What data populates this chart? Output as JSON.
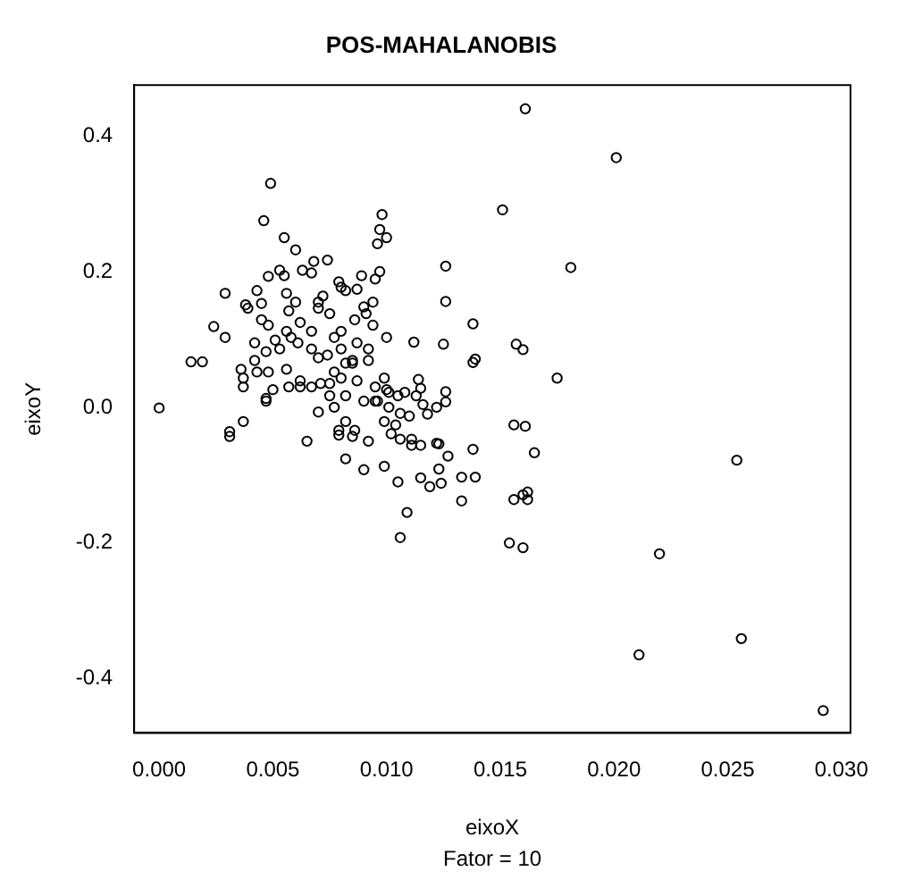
{
  "chart_data": {
    "type": "scatter",
    "title": "POS-MAHALANOBIS",
    "xlabel": "eixoX",
    "ylabel": "eixoY",
    "annotations": [
      "Fator = 10"
    ],
    "xlim": [
      -0.0011,
      0.0304
    ],
    "ylim": [
      -0.48,
      0.475
    ],
    "xticks": [
      {
        "value": 0,
        "label": "0.000"
      },
      {
        "value": 0.005,
        "label": "0.005"
      },
      {
        "value": 0.01,
        "label": "0.010"
      },
      {
        "value": 0.015,
        "label": "0.015"
      },
      {
        "value": 0.02,
        "label": "0.020"
      },
      {
        "value": 0.025,
        "label": "0.025"
      },
      {
        "value": 0.03,
        "label": "0.030"
      }
    ],
    "yticks": [
      {
        "value": -0.4,
        "label": "-0.4"
      },
      {
        "value": -0.2,
        "label": "-0.2"
      },
      {
        "value": 0,
        "label": "0.0"
      },
      {
        "value": 0.2,
        "label": "0.2"
      },
      {
        "value": 0.4,
        "label": "0.4"
      }
    ],
    "marker": "circle",
    "grid": false,
    "legend": false,
    "series": [
      {
        "color": "#000000",
        "x": [
          0.0161,
          0.0201,
          0.0151,
          0.0126,
          0.0181,
          0.0126,
          0.0138,
          0.0125,
          0.0157,
          0.016,
          0.0138,
          0.0139,
          0.0175,
          0.0126,
          0.0126,
          0.0156,
          0.0161,
          0.0123,
          0.0138,
          0.0127,
          0.0165,
          0.0254,
          0.0124,
          0.0133,
          0.0139,
          0.0133,
          0.0156,
          0.016,
          0.0162,
          0.0162,
          0.0154,
          0.016,
          0.022,
          0.0256,
          0.0211,
          0.0292,
          0.0098,
          0.0097,
          0.01,
          0.0096,
          0.0112,
          0.0114,
          0.0115,
          0.0122,
          0.0118,
          0.0111,
          0.0115,
          0.0122,
          0.0065,
          0.0079,
          0.0085,
          0.0092,
          0.0049,
          0.0046,
          0.0055,
          0.006,
          0.0029,
          0.0024,
          0.0029,
          0.0014,
          0.0019,
          0.0,
          0.0031,
          0.0031,
          0.0037,
          0.007,
          0.0036,
          0.0037,
          0.0037,
          0.0047,
          0.0047,
          0.0048,
          0.0038,
          0.0043,
          0.0045,
          0.0063,
          0.0068,
          0.0074,
          0.0067,
          0.0053,
          0.0055,
          0.0056,
          0.006,
          0.0057,
          0.0062,
          0.0056,
          0.0051,
          0.0047,
          0.0042,
          0.0039,
          0.0045,
          0.0048,
          0.0053,
          0.0058,
          0.0061,
          0.0056,
          0.0048,
          0.0043,
          0.0042,
          0.005,
          0.0062,
          0.0057,
          0.0067,
          0.007,
          0.0067,
          0.0067,
          0.0072,
          0.007,
          0.0075,
          0.0077,
          0.008,
          0.0085,
          0.0077,
          0.0075,
          0.0082,
          0.0077,
          0.0082,
          0.0079,
          0.0086,
          0.0089,
          0.0079,
          0.0082,
          0.008,
          0.0095,
          0.0097,
          0.0087,
          0.007,
          0.009,
          0.0094,
          0.0086,
          0.0091,
          0.0094,
          0.01,
          0.008,
          0.0087,
          0.0092,
          0.0074,
          0.0082,
          0.0085,
          0.0092,
          0.0099,
          0.0062,
          0.0071,
          0.008,
          0.0087,
          0.0095,
          0.0101,
          0.0075,
          0.009,
          0.0095,
          0.01,
          0.0105,
          0.0108,
          0.0096,
          0.0101,
          0.0106,
          0.011,
          0.0099,
          0.0104,
          0.0102,
          0.0113,
          0.0116,
          0.0106,
          0.0111,
          0.0109,
          0.0106,
          0.0115,
          0.0105,
          0.0099,
          0.009,
          0.0082,
          0.0123,
          0.0119
        ],
        "values": [
          0.44,
          0.368,
          0.291,
          0.208,
          0.206,
          0.156,
          0.123,
          0.093,
          0.093,
          0.085,
          0.066,
          0.071,
          0.043,
          0.023,
          0.008,
          -0.026,
          -0.028,
          -0.054,
          -0.062,
          -0.072,
          -0.067,
          -0.078,
          -0.112,
          -0.103,
          -0.103,
          -0.138,
          -0.136,
          -0.129,
          -0.125,
          -0.136,
          -0.2,
          -0.207,
          -0.216,
          -0.341,
          -0.365,
          -0.447,
          0.284,
          0.262,
          0.25,
          0.241,
          0.096,
          0.041,
          0.028,
          0.0,
          -0.01,
          -0.056,
          -0.056,
          -0.053,
          -0.05,
          -0.041,
          -0.043,
          -0.05,
          0.33,
          0.275,
          0.25,
          0.232,
          0.168,
          0.119,
          0.103,
          0.067,
          0.067,
          -0.001,
          -0.036,
          -0.043,
          -0.021,
          -0.007,
          0.056,
          0.043,
          0.03,
          0.013,
          0.009,
          0.193,
          0.151,
          0.172,
          0.153,
          0.202,
          0.215,
          0.217,
          0.198,
          0.202,
          0.194,
          0.168,
          0.155,
          0.142,
          0.125,
          0.112,
          0.099,
          0.082,
          0.095,
          0.146,
          0.129,
          0.121,
          0.086,
          0.103,
          0.095,
          0.056,
          0.052,
          0.052,
          0.069,
          0.026,
          0.03,
          0.03,
          0.03,
          0.073,
          0.086,
          0.112,
          0.164,
          0.146,
          0.138,
          0.103,
          0.086,
          0.069,
          0.052,
          0.035,
          0.017,
          0.0,
          -0.021,
          -0.034,
          -0.034,
          0.194,
          0.185,
          0.172,
          0.177,
          0.189,
          0.2,
          0.174,
          0.155,
          0.148,
          0.155,
          0.129,
          0.138,
          0.121,
          0.103,
          0.112,
          0.095,
          0.086,
          0.077,
          0.065,
          0.065,
          0.069,
          0.043,
          0.039,
          0.035,
          0.043,
          0.039,
          0.03,
          0.022,
          0.017,
          0.009,
          0.009,
          0.026,
          0.017,
          0.022,
          0.009,
          0.0,
          -0.009,
          -0.013,
          -0.021,
          -0.026,
          -0.039,
          0.017,
          0.004,
          -0.047,
          -0.047,
          -0.155,
          -0.192,
          -0.104,
          -0.11,
          -0.087,
          -0.092,
          -0.076,
          -0.091,
          -0.117
        ]
      }
    ]
  }
}
